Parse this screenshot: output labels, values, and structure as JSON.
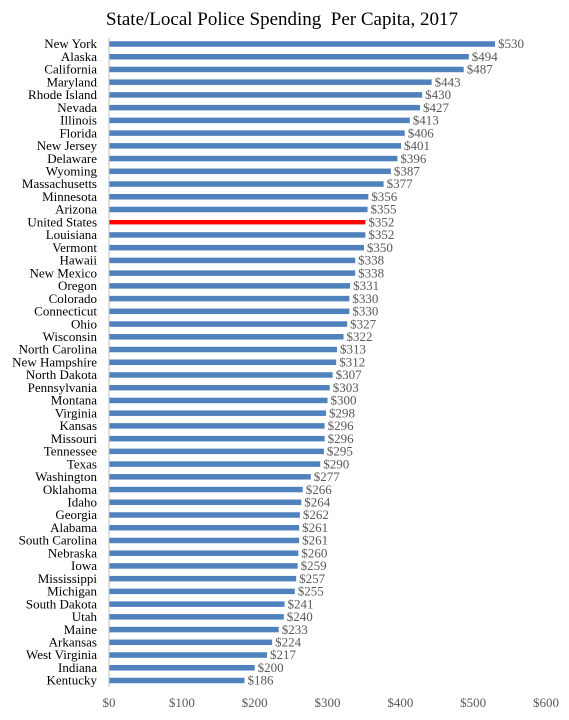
{
  "chart_data": {
    "type": "bar",
    "orientation": "horizontal",
    "title": "State/Local Police Spending  Per Capita, 2017",
    "xlabel": "",
    "ylabel": "",
    "xlim": [
      0,
      600
    ],
    "x_ticks": [
      "$0",
      "$100",
      "$200",
      "$300",
      "$400",
      "$500",
      "$600"
    ],
    "grid": false,
    "legend": "none",
    "colors": {
      "default": "#4F81BD",
      "highlight": "#FF0000"
    },
    "highlight_category": "United States",
    "categories": [
      "New York",
      "Alaska",
      "California",
      "Maryland",
      "Rhode Island",
      "Nevada",
      "Illinois",
      "Florida",
      "New Jersey",
      "Delaware",
      "Wyoming",
      "Massachusetts",
      "Minnesota",
      "Arizona",
      "United States",
      "Louisiana",
      "Vermont",
      "Hawaii",
      "New Mexico",
      "Oregon",
      "Colorado",
      "Connecticut",
      "Ohio",
      "Wisconsin",
      "North Carolina",
      "New Hampshire",
      "North Dakota",
      "Pennsylvania",
      "Montana",
      "Virginia",
      "Kansas",
      "Missouri",
      "Tennessee",
      "Texas",
      "Washington",
      "Oklahoma",
      "Idaho",
      "Georgia",
      "Alabama",
      "South Carolina",
      "Nebraska",
      "Iowa",
      "Mississippi",
      "Michigan",
      "South Dakota",
      "Utah",
      "Maine",
      "Arkansas",
      "West Virginia",
      "Indiana",
      "Kentucky"
    ],
    "values": [
      530,
      494,
      487,
      443,
      430,
      427,
      413,
      406,
      401,
      396,
      387,
      377,
      356,
      355,
      352,
      352,
      350,
      338,
      338,
      331,
      330,
      330,
      327,
      322,
      313,
      312,
      307,
      303,
      300,
      298,
      296,
      296,
      295,
      290,
      277,
      266,
      264,
      262,
      261,
      261,
      260,
      259,
      257,
      255,
      241,
      240,
      233,
      224,
      217,
      200,
      186
    ],
    "value_labels": [
      "$530",
      "$494",
      "$487",
      "$443",
      "$430",
      "$427",
      "$413",
      "$406",
      "$401",
      "$396",
      "$387",
      "$377",
      "$356",
      "$355",
      "$352",
      "$352",
      "$350",
      "$338",
      "$338",
      "$331",
      "$330",
      "$330",
      "$327",
      "$322",
      "$313",
      "$312",
      "$307",
      "$303",
      "$300",
      "$298",
      "$296",
      "$296",
      "$295",
      "$290",
      "$277",
      "$266",
      "$264",
      "$262",
      "$261",
      "$261",
      "$260",
      "$259",
      "$257",
      "$255",
      "$241",
      "$240",
      "$233",
      "$224",
      "$217",
      "$200",
      "$186"
    ]
  }
}
